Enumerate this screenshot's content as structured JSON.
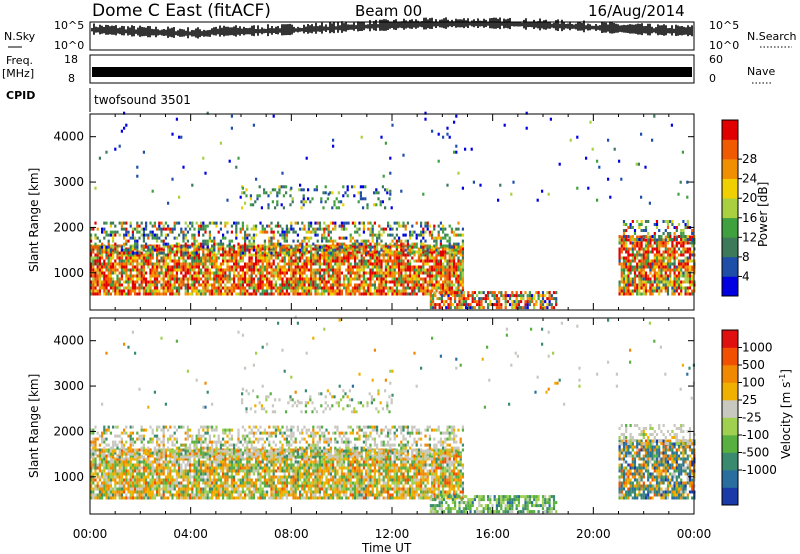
{
  "header": {
    "station": "Dome C East (fitACF)",
    "beam": "Beam 00",
    "date": "16/Aug/2014"
  },
  "strips": {
    "nsky_label": "N.Sky",
    "nsky_ticks": [
      "10^5",
      "10^0"
    ],
    "nsearch_label": "N.Search",
    "freq_label": "Freq.",
    "freq_unit": "[MHz]",
    "freq_ticks": [
      "18",
      "8"
    ],
    "nave_label": "Nave",
    "nave_ticks": [
      "60",
      "0"
    ],
    "cpid_label": "CPID",
    "cpid_value": "twofsound 3501"
  },
  "chart_data": [
    {
      "type": "heatmap",
      "name": "power",
      "ylabel": "Slant Range [km]",
      "xlabel": "Time UT",
      "yticks": [
        "1000",
        "2000",
        "3000",
        "4000"
      ],
      "xticks": [
        "00:00",
        "04:00",
        "08:00",
        "12:00",
        "16:00",
        "20:00",
        "00:00"
      ],
      "xlim": [
        0,
        24
      ],
      "ylim": [
        180,
        4500
      ],
      "colorbar": {
        "label": "Power [dB]",
        "ticks": [
          "4",
          "8",
          "12",
          "16",
          "20",
          "24",
          "28"
        ],
        "colors": [
          "#0000e0",
          "#1e4ea8",
          "#3c7a5a",
          "#3fa040",
          "#a8d040",
          "#f0d000",
          "#f09000",
          "#f05a00",
          "#e00000"
        ]
      }
    },
    {
      "type": "heatmap",
      "name": "velocity",
      "ylabel": "Slant Range [km]",
      "xlabel": "Time UT",
      "yticks": [
        "1000",
        "2000",
        "3000",
        "4000"
      ],
      "xticks": [
        "00:00",
        "04:00",
        "08:00",
        "12:00",
        "16:00",
        "20:00",
        "00:00"
      ],
      "xlim": [
        0,
        24
      ],
      "ylim": [
        180,
        4500
      ],
      "colorbar": {
        "label": "Velocity [m s-1]",
        "ticks": [
          "1000",
          "500",
          "100",
          "25",
          "-25",
          "-100",
          "-500",
          "-1000"
        ],
        "colors": [
          "#1a3aa8",
          "#2a6ea0",
          "#3a8a70",
          "#58b040",
          "#a0d050",
          "#c8c8c0",
          "#f0b000",
          "#f08800",
          "#f05000",
          "#e01010"
        ]
      }
    }
  ]
}
